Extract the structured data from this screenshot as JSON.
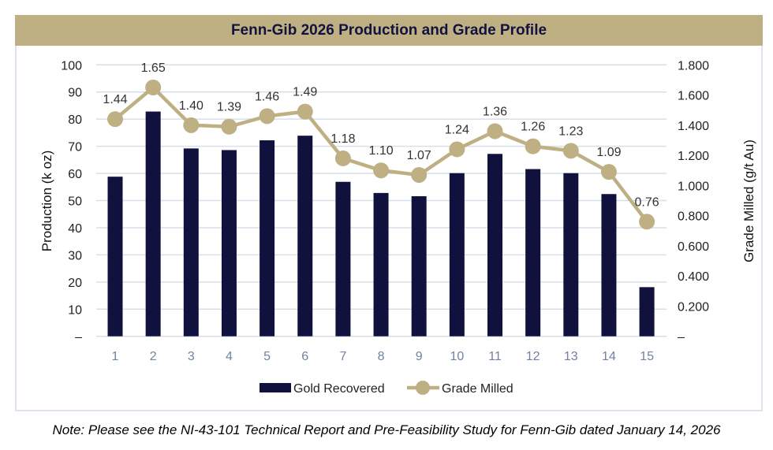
{
  "chart_data": {
    "type": "bar+line",
    "title": "Fenn-Gib 2026 Production and Grade Profile",
    "categories": [
      "1",
      "2",
      "3",
      "4",
      "5",
      "6",
      "7",
      "8",
      "9",
      "10",
      "11",
      "12",
      "13",
      "14",
      "15"
    ],
    "series": [
      {
        "name": "Gold Recovered",
        "type": "bar",
        "axis": "left",
        "color": "#11113e",
        "values": [
          58.8,
          82.8,
          69.2,
          68.6,
          72.2,
          73.9,
          56.9,
          52.8,
          51.6,
          60.1,
          67.2,
          61.6,
          60.1,
          52.4,
          18.1
        ]
      },
      {
        "name": "Grade Milled",
        "type": "line",
        "axis": "right",
        "color": "#bfb083",
        "values": [
          1.44,
          1.65,
          1.4,
          1.39,
          1.46,
          1.49,
          1.18,
          1.1,
          1.07,
          1.24,
          1.36,
          1.26,
          1.23,
          1.09,
          0.76
        ],
        "data_labels": [
          "1.44",
          "1.65",
          "1.40",
          "1.39",
          "1.46",
          "1.49",
          "1.18",
          "1.10",
          "1.07",
          "1.24",
          "1.36",
          "1.26",
          "1.23",
          "1.09",
          "0.76"
        ]
      }
    ],
    "ylabel": "Production (k oz)",
    "ylim": [
      0,
      100
    ],
    "yticks": [
      "–",
      "10",
      "20",
      "30",
      "40",
      "50",
      "60",
      "70",
      "80",
      "90",
      "100"
    ],
    "y2label": "Grade Milled (g/t Au)",
    "y2lim": [
      0,
      1.8
    ],
    "y2ticks": [
      "–",
      "0.200",
      "0.400",
      "0.600",
      "0.800",
      "1.000",
      "1.200",
      "1.400",
      "1.600",
      "1.800"
    ],
    "grid": true,
    "legend": "bottom"
  },
  "note": "Note: Please see the NI-43-101 Technical Report and Pre-Feasibility Study for Fenn-Gib dated January 14, 2026"
}
